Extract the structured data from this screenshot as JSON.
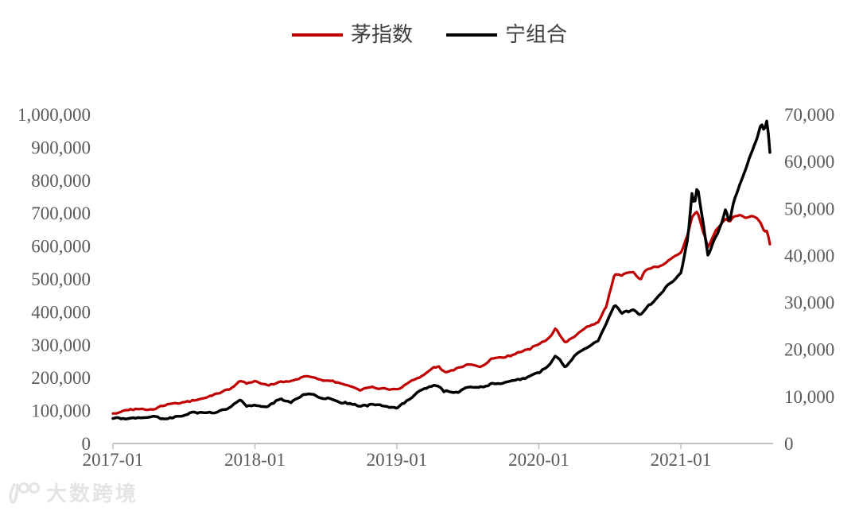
{
  "colors": {
    "background": "#FFFFFF",
    "mao_red": "#C00000",
    "ning_black": "#000000",
    "axis_text": "#595959",
    "axis_line": "#BFBFBF",
    "legend_text": "#404040",
    "watermark": "#E4E4E4"
  },
  "watermark": {
    "logo": "100-swoosh-logo",
    "text": "大数跨境"
  },
  "chart_data": {
    "type": "line",
    "title": "",
    "grid": false,
    "legend_position": "top-center",
    "x_unit": "months since 2017-01",
    "x": [
      0,
      1,
      2,
      3,
      4,
      5,
      6,
      7,
      8,
      9,
      10,
      10.7,
      11.3,
      12,
      13,
      14,
      15,
      16,
      17,
      18,
      19,
      20,
      21,
      22,
      23,
      24,
      25,
      26,
      27,
      27.5,
      28,
      29,
      30,
      31,
      32,
      33,
      34,
      35,
      36,
      37,
      37.4,
      38.2,
      39,
      40,
      41,
      41.7,
      42.4,
      43,
      44,
      44.6,
      45,
      46,
      47,
      48,
      48.6,
      48.95,
      49.15,
      49.4,
      50.3,
      51,
      51.5,
      51.8,
      52.1,
      52.5,
      53,
      53.5,
      54,
      54.4,
      54.8,
      55.05,
      55.3,
      55.6
    ],
    "series": [
      {
        "name": "茅指数",
        "axis": "left",
        "color": "#C00000",
        "values": [
          92000,
          97000,
          102000,
          106000,
          112000,
          119000,
          126000,
          132000,
          139000,
          149000,
          163000,
          186000,
          182000,
          191000,
          172000,
          183000,
          192000,
          199000,
          205000,
          190000,
          182000,
          177000,
          163000,
          169000,
          166000,
          161000,
          186000,
          202000,
          231000,
          237000,
          218000,
          226000,
          237000,
          232000,
          254000,
          261000,
          271000,
          280000,
          302000,
          330000,
          348000,
          303000,
          322000,
          352000,
          366000,
          420000,
          520000,
          512000,
          523000,
          498000,
          525000,
          538000,
          558000,
          580000,
          640000,
          690000,
          700000,
          708000,
          598000,
          652000,
          668000,
          680000,
          672000,
          692000,
          695000,
          690000,
          698000,
          688000,
          670000,
          645000,
          650000,
          597000
        ]
      },
      {
        "name": "宁组合",
        "axis": "right",
        "color": "#000000",
        "values": [
          5500,
          5600,
          5700,
          5500,
          5350,
          5600,
          6000,
          6500,
          6800,
          7100,
          7800,
          9200,
          7800,
          8400,
          7800,
          9200,
          9100,
          10000,
          10400,
          9400,
          8900,
          8600,
          7800,
          8200,
          7900,
          7700,
          9400,
          11100,
          11900,
          12000,
          10800,
          11200,
          11700,
          11900,
          12700,
          12900,
          13300,
          13900,
          15100,
          17200,
          18600,
          16100,
          19000,
          20100,
          21700,
          25500,
          29400,
          27600,
          28600,
          27500,
          29000,
          31000,
          34000,
          36500,
          44000,
          53500,
          50500,
          55000,
          39800,
          44000,
          47500,
          50200,
          47000,
          52000,
          55500,
          58500,
          62000,
          64500,
          68000,
          66300,
          68800,
          59800
        ]
      }
    ],
    "left_axis": {
      "min": 0,
      "max": 1000000,
      "tick_step": 100000,
      "tick_labels": [
        "1,000,000",
        "900,000",
        "800,000",
        "700,000",
        "600,000",
        "500,000",
        "400,000",
        "300,000",
        "200,000",
        "100,000",
        "0"
      ]
    },
    "right_axis": {
      "min": 0,
      "max": 70000,
      "tick_step": 10000,
      "tick_labels": [
        "70,000",
        "60,000",
        "50,000",
        "40,000",
        "30,000",
        "20,000",
        "10,000",
        "0"
      ]
    },
    "x_axis": {
      "tick_positions": [
        0,
        12,
        24,
        36,
        48
      ],
      "tick_labels": [
        "2017-01",
        "2018-01",
        "2019-01",
        "2020-01",
        "2021-01"
      ]
    }
  }
}
